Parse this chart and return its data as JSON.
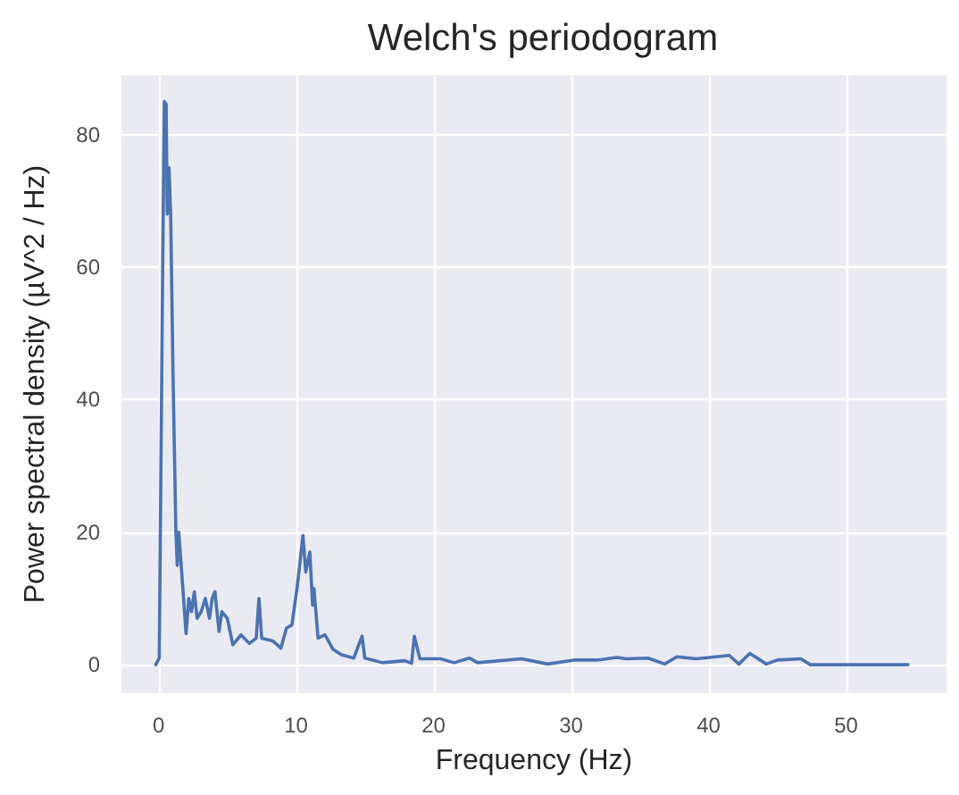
{
  "chart_data": {
    "type": "line",
    "title": "Welch's periodogram",
    "xlabel": "Frequency (Hz)",
    "ylabel": "Power spectral density (µV^2 / Hz)",
    "series": [
      {
        "color": "#4c72b0",
        "x": [
          -0.2,
          0.05,
          0.3,
          0.42,
          0.55,
          0.63,
          0.76,
          0.88,
          1.05,
          1.26,
          1.36,
          1.47,
          1.68,
          2.0,
          2.2,
          2.4,
          2.6,
          2.8,
          3.1,
          3.4,
          3.7,
          3.9,
          4.1,
          4.4,
          4.6,
          5.0,
          5.4,
          6.0,
          6.6,
          7.1,
          7.3,
          7.5,
          8.3,
          8.9,
          9.3,
          9.7,
          10.1,
          10.5,
          10.7,
          11.0,
          11.2,
          11.3,
          11.6,
          12.1,
          12.7,
          13.3,
          14.2,
          14.8,
          15.0,
          16.3,
          17.9,
          18.4,
          18.6,
          19.0,
          20.5,
          21.5,
          22.6,
          23.2,
          26.4,
          28.3,
          30.2,
          31.9,
          33.3,
          34.0,
          35.6,
          36.8,
          37.7,
          39.1,
          41.5,
          42.2,
          43.0,
          44.2,
          45.0,
          46.7,
          47.4,
          54.5
        ],
        "values": [
          0,
          1,
          60,
          85,
          84.6,
          68,
          75,
          68,
          44,
          20,
          15,
          20,
          14,
          4.7,
          10,
          8,
          11,
          7,
          8,
          10,
          7,
          10,
          11,
          5,
          8,
          7,
          3,
          4.5,
          3.2,
          4,
          10,
          4,
          3.6,
          2.5,
          5.5,
          6,
          12,
          19.5,
          14,
          17,
          9,
          11.5,
          4,
          4.5,
          2.3,
          1.5,
          1,
          4.3,
          1,
          0.3,
          0.6,
          0.2,
          4.3,
          0.9,
          0.9,
          0.3,
          1.0,
          0.3,
          0.9,
          0.1,
          0.7,
          0.7,
          1.1,
          0.9,
          1.0,
          0.1,
          1.2,
          0.9,
          1.4,
          0.1,
          1.7,
          0.1,
          0.7,
          0.9,
          0,
          0
        ]
      }
    ],
    "xlim": [
      -2.7,
      57.3
    ],
    "ylim": [
      -4.3,
      89
    ],
    "xticks": [
      0,
      10,
      20,
      30,
      40,
      50
    ],
    "yticks": [
      0,
      20,
      40,
      60,
      80
    ],
    "grid": true,
    "marker": "none",
    "line_style": "solid"
  }
}
